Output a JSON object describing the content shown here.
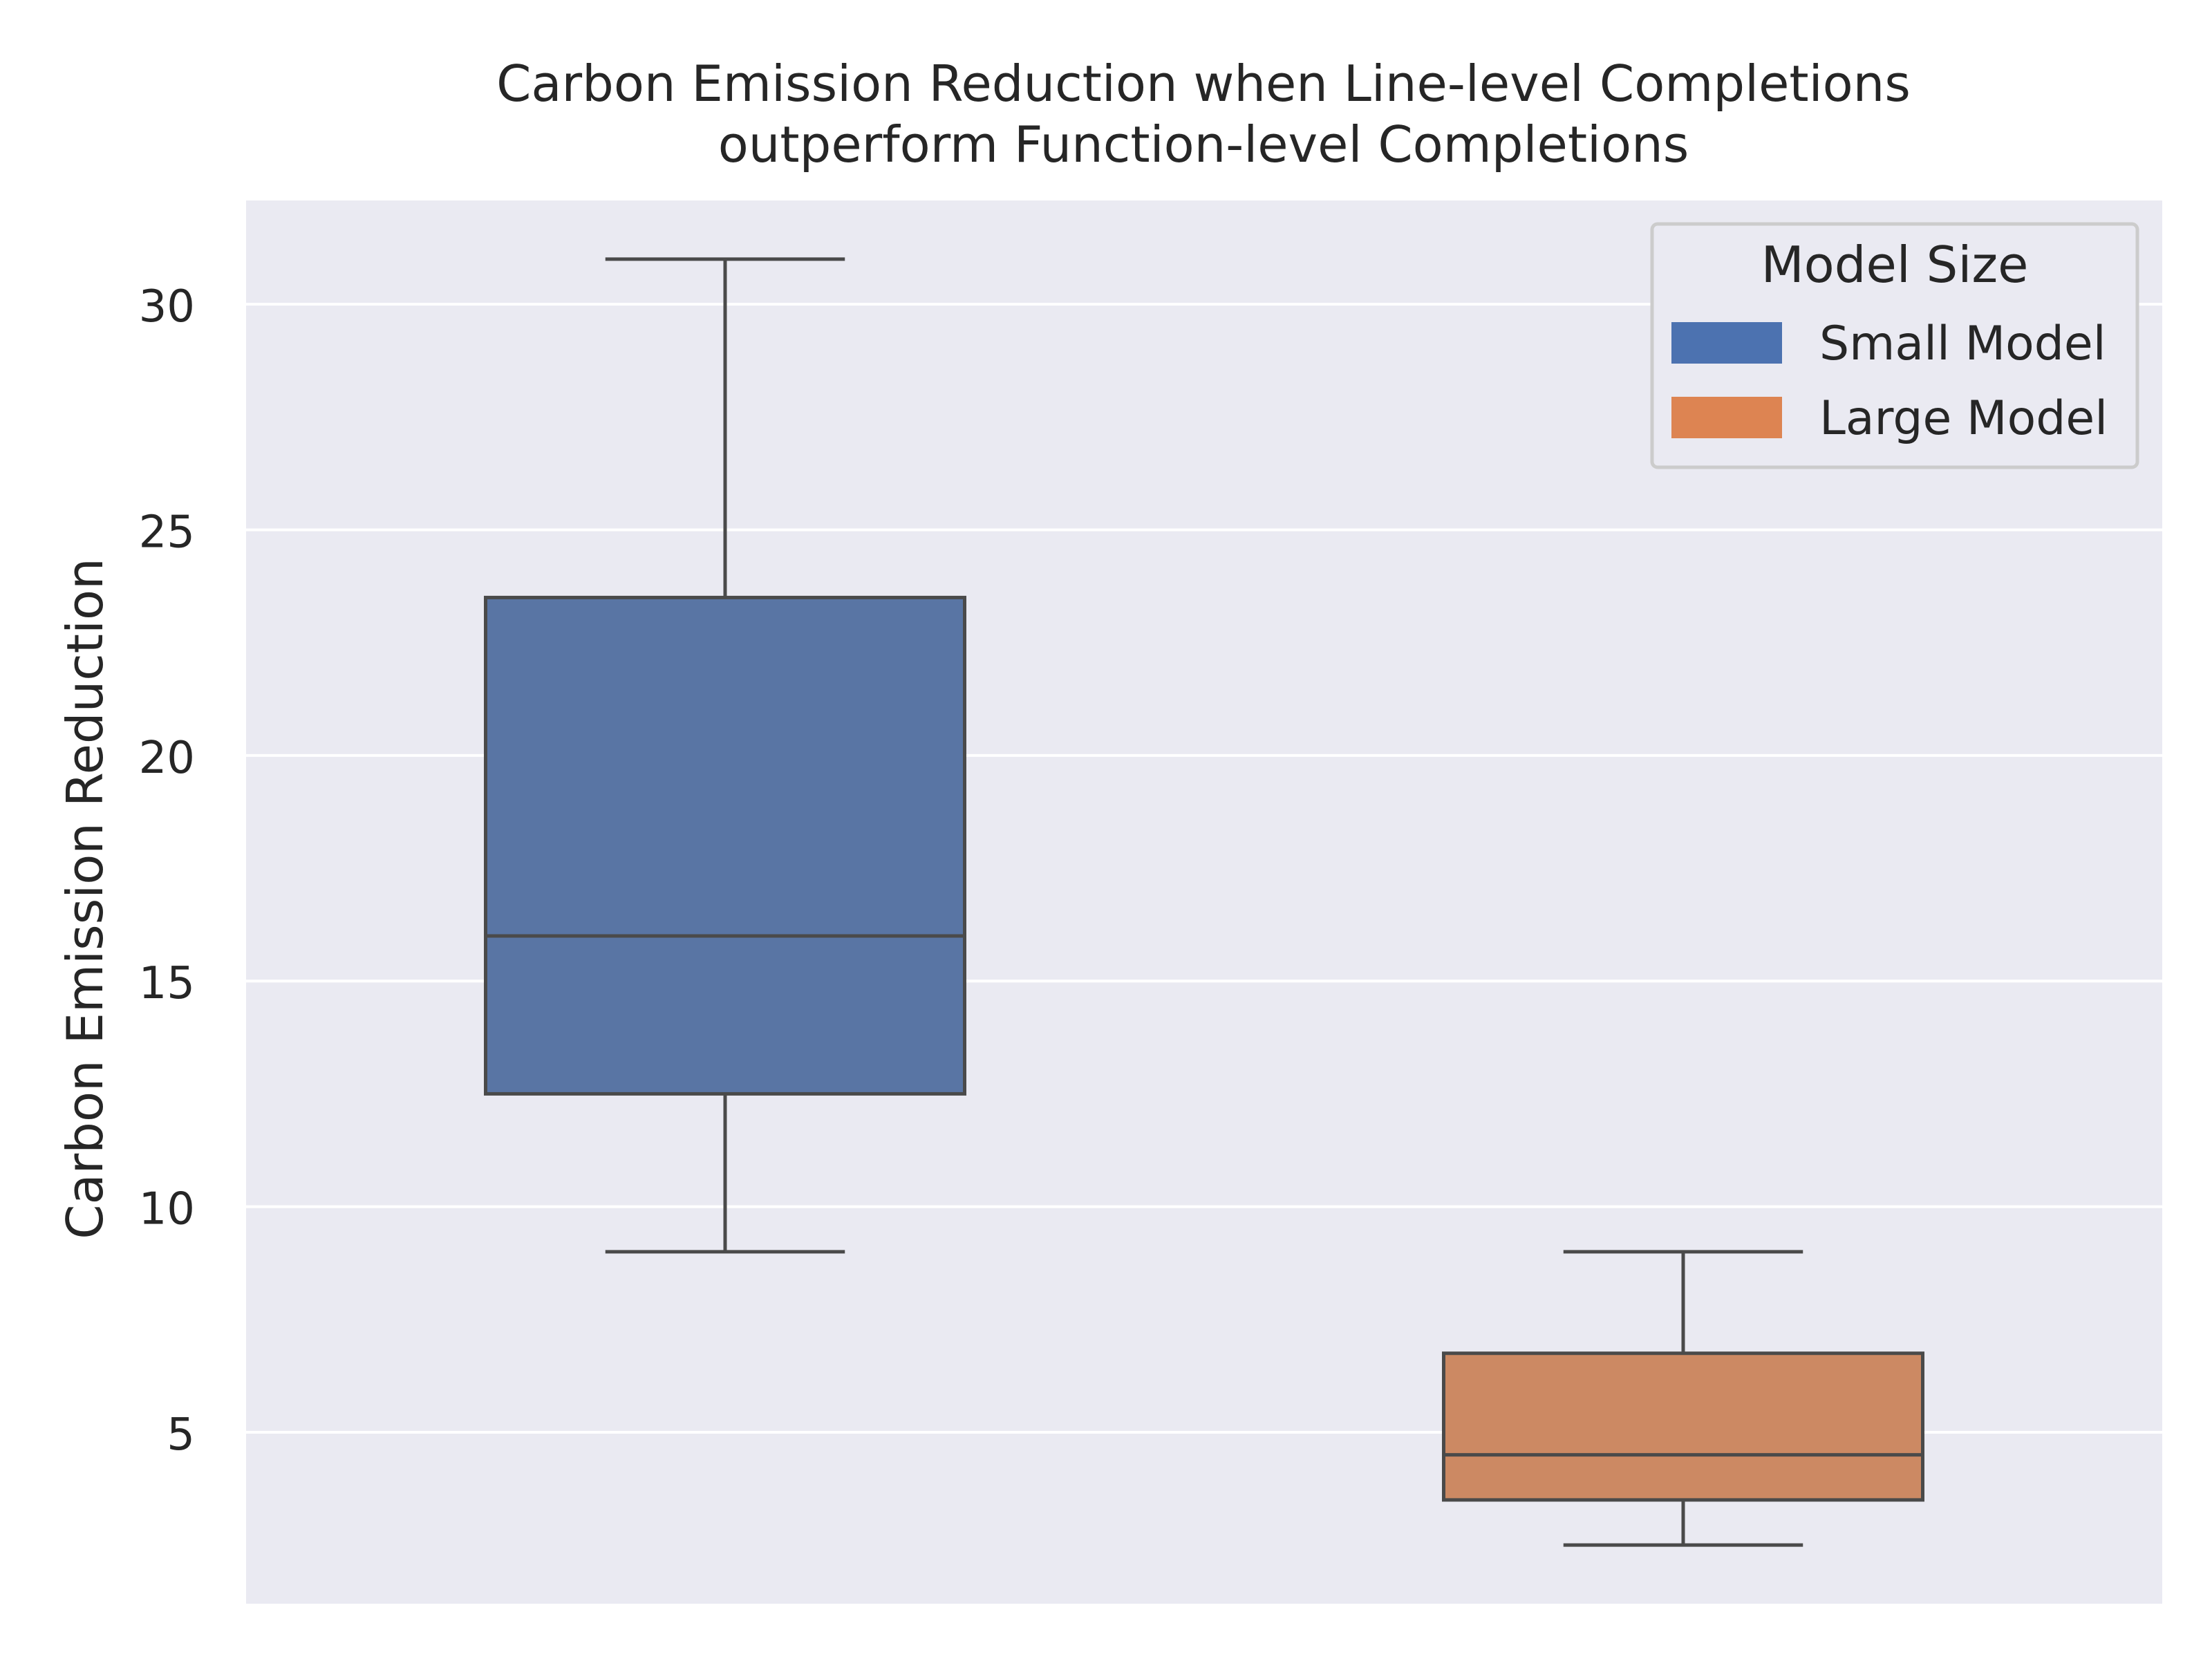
{
  "chart_data": {
    "type": "box",
    "title_line1": "Carbon Emission Reduction when Line-level Completions",
    "title_line2": "outperform Function-level Completions",
    "xlabel": "",
    "ylabel": "Carbon Emission Reduction",
    "ylim": [
      1.2,
      32.3
    ],
    "yticks": [
      5,
      10,
      15,
      20,
      25,
      30
    ],
    "grid": true,
    "legend_position": "top-right",
    "legend_title": "Model Size",
    "series": [
      {
        "name": "Small Model",
        "color": "#4c72b0",
        "fill_color": "#5975a4",
        "whisker_low": 9,
        "q1": 12.5,
        "median": 16,
        "q3": 23.5,
        "whisker_high": 31
      },
      {
        "name": "Large Model",
        "color": "#dd8452",
        "fill_color": "#cc8963",
        "whisker_low": 2.5,
        "q1": 3.5,
        "median": 4.5,
        "q3": 6.75,
        "whisker_high": 9
      }
    ],
    "colors": {
      "plot_background": "#eaeaf2",
      "grid": "#ffffff",
      "box_edge": "#4a4a4a",
      "text": "#262626"
    }
  }
}
